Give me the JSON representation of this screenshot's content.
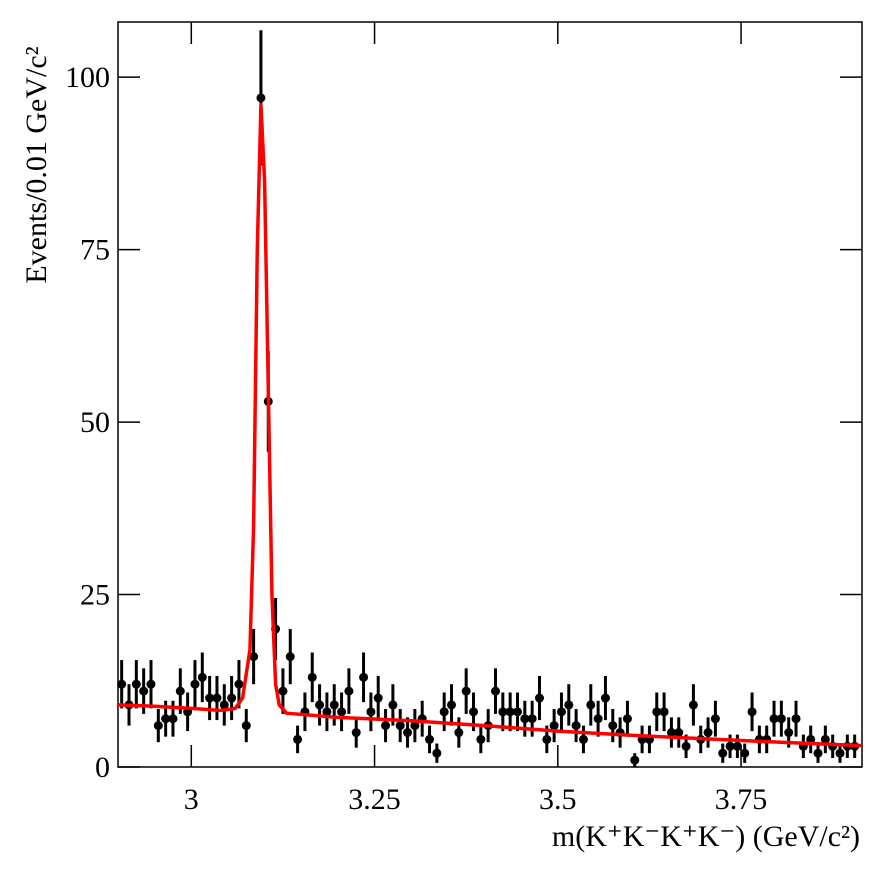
{
  "chart_data": {
    "type": "scatter",
    "x_label": "m(K⁺K⁻K⁺K⁻) (GeV/c²)",
    "y_label": "Events/0.01 GeV/c²",
    "xlim": [
      2.9,
      3.915
    ],
    "ylim": [
      0,
      108
    ],
    "xticks": [
      3,
      3.25,
      3.5,
      3.75
    ],
    "yticks": [
      0,
      25,
      50,
      75,
      100
    ],
    "points": {
      "color": "#000000",
      "x": [
        2.905,
        2.915,
        2.925,
        2.935,
        2.945,
        2.955,
        2.965,
        2.975,
        2.985,
        2.995,
        3.005,
        3.015,
        3.025,
        3.035,
        3.045,
        3.055,
        3.065,
        3.075,
        3.085,
        3.095,
        3.105,
        3.115,
        3.125,
        3.135,
        3.145,
        3.155,
        3.165,
        3.175,
        3.185,
        3.195,
        3.205,
        3.215,
        3.225,
        3.235,
        3.245,
        3.255,
        3.265,
        3.275,
        3.285,
        3.295,
        3.305,
        3.315,
        3.325,
        3.335,
        3.345,
        3.355,
        3.365,
        3.375,
        3.385,
        3.395,
        3.405,
        3.415,
        3.425,
        3.435,
        3.445,
        3.455,
        3.465,
        3.475,
        3.485,
        3.495,
        3.505,
        3.515,
        3.525,
        3.535,
        3.545,
        3.555,
        3.565,
        3.575,
        3.585,
        3.595,
        3.605,
        3.615,
        3.625,
        3.635,
        3.645,
        3.655,
        3.665,
        3.675,
        3.685,
        3.695,
        3.705,
        3.715,
        3.725,
        3.735,
        3.745,
        3.755,
        3.765,
        3.775,
        3.785,
        3.795,
        3.805,
        3.815,
        3.825,
        3.835,
        3.845,
        3.855,
        3.865,
        3.875,
        3.885,
        3.895,
        3.905
      ],
      "values": [
        12,
        9,
        12,
        11,
        12,
        6,
        7,
        7,
        11,
        8,
        12,
        13,
        10,
        10,
        9,
        10,
        12,
        6,
        16,
        97,
        53,
        20,
        11,
        16,
        4,
        8,
        13,
        9,
        8,
        9,
        8,
        11,
        5,
        13,
        8,
        10,
        6,
        9,
        6,
        5,
        6,
        7,
        4,
        2,
        8,
        9,
        5,
        11,
        8,
        4,
        6,
        11,
        8,
        8,
        8,
        7,
        7,
        10,
        4,
        6,
        8,
        9,
        6,
        4,
        9,
        7,
        10,
        6,
        5,
        7,
        1,
        4,
        4,
        8,
        8,
        5,
        5,
        3,
        9,
        4,
        5,
        7,
        2,
        3,
        3,
        2,
        8,
        4,
        4,
        7,
        7,
        5,
        7,
        3,
        4,
        2,
        4,
        3,
        2,
        3,
        3
      ],
      "errors": [
        3.5,
        3,
        3.5,
        3.3,
        3.5,
        2.4,
        2.6,
        2.6,
        3.3,
        2.8,
        3.5,
        3.6,
        3.2,
        3.2,
        3,
        3.2,
        3.5,
        2.4,
        4,
        9.8,
        7.3,
        4.5,
        3.3,
        4,
        2,
        2.8,
        3.6,
        3,
        2.8,
        3,
        2.8,
        3.3,
        2.2,
        3.6,
        2.8,
        3.2,
        2.4,
        3,
        2.4,
        2.2,
        2.4,
        2.6,
        2,
        1.4,
        2.8,
        3,
        2.2,
        3.3,
        2.8,
        2,
        2.4,
        3.3,
        2.8,
        2.8,
        2.8,
        2.6,
        2.6,
        3.2,
        2,
        2.4,
        2.8,
        3,
        2.4,
        2,
        3,
        2.6,
        3.2,
        2.4,
        2.2,
        2.6,
        1,
        2,
        2,
        2.8,
        2.8,
        2.2,
        2.2,
        1.7,
        3,
        2,
        2.2,
        2.6,
        1.4,
        1.7,
        1.7,
        1.4,
        2.8,
        2,
        2,
        2.6,
        2.6,
        2.2,
        2.6,
        1.7,
        2,
        1.4,
        2,
        1.7,
        1.4,
        1.7,
        1.7
      ]
    },
    "fit": {
      "color": "#ff0000",
      "x": [
        2.9,
        2.95,
        3.0,
        3.04,
        3.06,
        3.07,
        3.08,
        3.085,
        3.09,
        3.095,
        3.1,
        3.105,
        3.11,
        3.115,
        3.12,
        3.13,
        3.2,
        3.3,
        3.4,
        3.5,
        3.6,
        3.7,
        3.8,
        3.915
      ],
      "values": [
        9,
        8.8,
        8.5,
        8.2,
        8.5,
        10,
        17,
        35,
        75,
        96,
        85,
        55,
        25,
        12,
        9,
        7.8,
        7.2,
        6.7,
        6,
        5.2,
        4.6,
        4.1,
        3.6,
        3.1
      ]
    }
  }
}
